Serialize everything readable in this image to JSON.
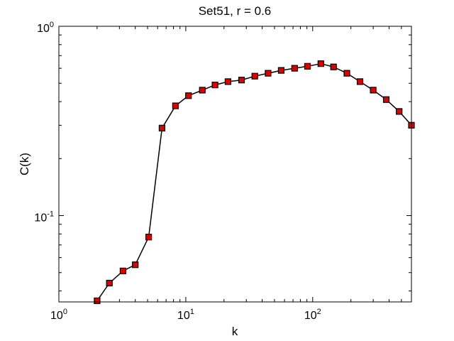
{
  "chart_data": {
    "type": "line",
    "title": "Set51, r = 0.6",
    "xlabel": "k",
    "ylabel": "C(k)",
    "xscale": "log",
    "yscale": "log",
    "xlim": [
      1,
      600
    ],
    "ylim": [
      0.035,
      1
    ],
    "grid": false,
    "legend": "none",
    "x_ticks": [
      {
        "base": "10",
        "exp": "0"
      },
      {
        "base": "10",
        "exp": "1"
      },
      {
        "base": "10",
        "exp": "2"
      }
    ],
    "y_ticks": [
      {
        "base": "10",
        "exp": "-1"
      },
      {
        "base": "10",
        "exp": "0"
      }
    ],
    "series": [
      {
        "x": [
          2.0,
          2.5,
          3.2,
          4.0,
          5.1,
          6.5,
          8.3,
          10.5,
          13.5,
          17.0,
          21.5,
          27.5,
          35,
          44.5,
          56.5,
          72,
          91,
          116,
          146,
          186,
          236,
          300,
          380,
          480,
          600
        ],
        "y": [
          0.0355,
          0.044,
          0.051,
          0.055,
          0.077,
          0.29,
          0.38,
          0.43,
          0.46,
          0.49,
          0.51,
          0.52,
          0.545,
          0.565,
          0.585,
          0.6,
          0.615,
          0.635,
          0.61,
          0.565,
          0.51,
          0.46,
          0.41,
          0.355,
          0.3
        ],
        "color": "#000000",
        "marker": "square",
        "marker_color": "#e00000"
      }
    ]
  }
}
